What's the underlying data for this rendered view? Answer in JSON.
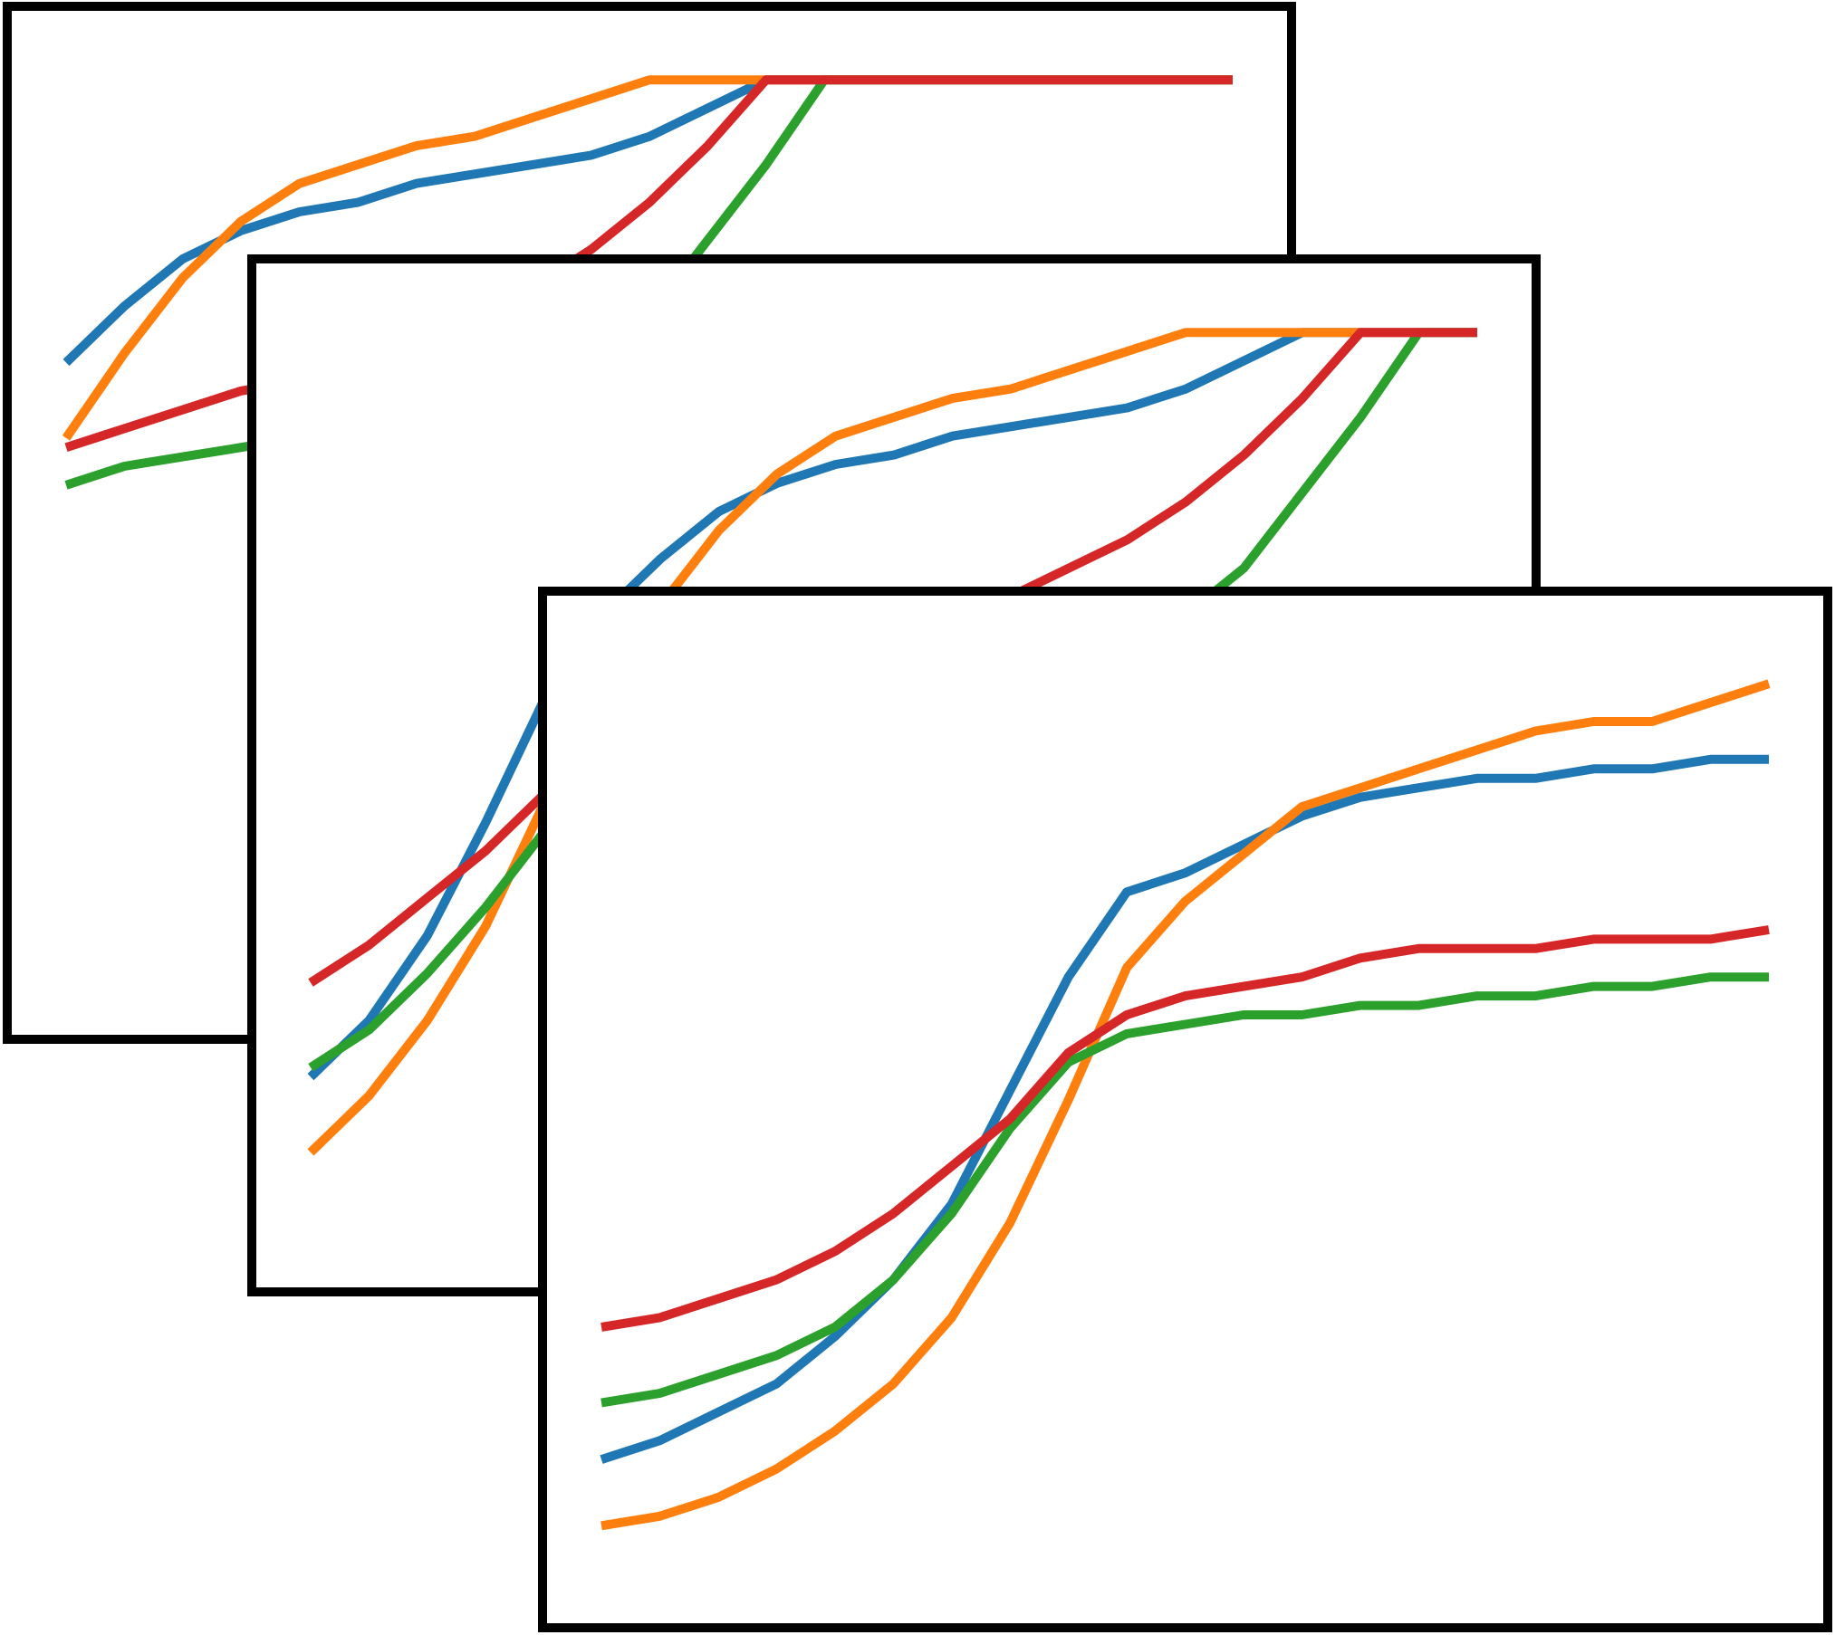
{
  "chart_data": [
    {
      "type": "line",
      "title": "",
      "xlabel": "",
      "ylabel": "",
      "xlim": [
        0,
        1
      ],
      "ylim": [
        0,
        1
      ],
      "grid": false,
      "legend": "none",
      "x": [
        0.0,
        0.05,
        0.1,
        0.15,
        0.2,
        0.25,
        0.3,
        0.35,
        0.4,
        0.45,
        0.5,
        0.55,
        0.6,
        0.65,
        0.7,
        0.75,
        0.8,
        0.85,
        0.9,
        0.95,
        1.0
      ],
      "series": [
        {
          "color": "#1f77b4",
          "values": [
            0.67,
            0.73,
            0.78,
            0.81,
            0.83,
            0.84,
            0.86,
            0.87,
            0.88,
            0.89,
            0.91,
            0.94,
            0.97,
            0.97,
            0.97,
            0.97,
            0.97,
            0.97,
            0.97,
            0.97,
            0.97
          ]
        },
        {
          "color": "#ff7f0e",
          "values": [
            0.59,
            0.68,
            0.76,
            0.82,
            0.86,
            0.88,
            0.9,
            0.91,
            0.93,
            0.95,
            0.97,
            0.97,
            0.97,
            0.97,
            0.97,
            0.97,
            0.97,
            0.97,
            0.97,
            0.97,
            0.97
          ]
        },
        {
          "color": "#2ca02c",
          "values": [
            0.54,
            0.56,
            0.57,
            0.58,
            0.59,
            0.6,
            0.61,
            0.62,
            0.64,
            0.67,
            0.72,
            0.8,
            0.88,
            0.97,
            0.97,
            0.97,
            0.97,
            0.97,
            0.97,
            0.97,
            0.97
          ]
        },
        {
          "color": "#d62728",
          "values": [
            0.58,
            0.6,
            0.62,
            0.64,
            0.65,
            0.67,
            0.69,
            0.72,
            0.75,
            0.79,
            0.84,
            0.9,
            0.97,
            0.97,
            0.97,
            0.97,
            0.97,
            0.97,
            0.97,
            0.97,
            0.97
          ]
        }
      ]
    },
    {
      "type": "line",
      "title": "",
      "xlabel": "",
      "ylabel": "",
      "xlim": [
        0,
        1
      ],
      "ylim": [
        0,
        1
      ],
      "grid": false,
      "legend": "none",
      "x": [
        0.0,
        0.05,
        0.1,
        0.15,
        0.2,
        0.25,
        0.3,
        0.35,
        0.4,
        0.45,
        0.5,
        0.55,
        0.6,
        0.65,
        0.7,
        0.75,
        0.8,
        0.85,
        0.9,
        0.95,
        1.0
      ],
      "series": [
        {
          "color": "#1f77b4",
          "values": [
            0.18,
            0.24,
            0.33,
            0.45,
            0.58,
            0.67,
            0.73,
            0.78,
            0.81,
            0.83,
            0.84,
            0.86,
            0.87,
            0.88,
            0.89,
            0.91,
            0.94,
            0.97,
            0.97,
            0.97,
            0.97
          ]
        },
        {
          "color": "#ff7f0e",
          "values": [
            0.1,
            0.16,
            0.24,
            0.34,
            0.47,
            0.59,
            0.68,
            0.76,
            0.82,
            0.86,
            0.88,
            0.9,
            0.91,
            0.93,
            0.95,
            0.97,
            0.97,
            0.97,
            0.97,
            0.97,
            0.97
          ]
        },
        {
          "color": "#2ca02c",
          "values": [
            0.19,
            0.23,
            0.29,
            0.36,
            0.44,
            0.5,
            0.54,
            0.56,
            0.57,
            0.58,
            0.59,
            0.6,
            0.61,
            0.62,
            0.64,
            0.67,
            0.72,
            0.8,
            0.88,
            0.97,
            0.97
          ]
        },
        {
          "color": "#d62728",
          "values": [
            0.28,
            0.32,
            0.37,
            0.42,
            0.48,
            0.54,
            0.58,
            0.6,
            0.62,
            0.64,
            0.65,
            0.67,
            0.69,
            0.72,
            0.75,
            0.79,
            0.84,
            0.9,
            0.97,
            0.97,
            0.97
          ]
        }
      ]
    },
    {
      "type": "line",
      "title": "",
      "xlabel": "",
      "ylabel": "",
      "xlim": [
        0,
        1
      ],
      "ylim": [
        0,
        1
      ],
      "grid": false,
      "legend": "none",
      "x": [
        0.0,
        0.05,
        0.1,
        0.15,
        0.2,
        0.25,
        0.3,
        0.35,
        0.4,
        0.45,
        0.5,
        0.55,
        0.6,
        0.65,
        0.7,
        0.75,
        0.8,
        0.85,
        0.9,
        0.95,
        1.0
      ],
      "series": [
        {
          "color": "#1f77b4",
          "values": [
            0.13,
            0.15,
            0.18,
            0.21,
            0.26,
            0.32,
            0.4,
            0.52,
            0.64,
            0.73,
            0.75,
            0.78,
            0.81,
            0.83,
            0.84,
            0.85,
            0.85,
            0.86,
            0.86,
            0.87,
            0.87
          ]
        },
        {
          "color": "#ff7f0e",
          "values": [
            0.06,
            0.07,
            0.09,
            0.12,
            0.16,
            0.21,
            0.28,
            0.38,
            0.51,
            0.65,
            0.72,
            0.77,
            0.82,
            0.84,
            0.86,
            0.88,
            0.9,
            0.91,
            0.91,
            0.93,
            0.95
          ]
        },
        {
          "color": "#2ca02c",
          "values": [
            0.19,
            0.2,
            0.22,
            0.24,
            0.27,
            0.32,
            0.39,
            0.48,
            0.55,
            0.58,
            0.59,
            0.6,
            0.6,
            0.61,
            0.61,
            0.62,
            0.62,
            0.63,
            0.63,
            0.64,
            0.64
          ]
        },
        {
          "color": "#d62728",
          "values": [
            0.27,
            0.28,
            0.3,
            0.32,
            0.35,
            0.39,
            0.44,
            0.49,
            0.56,
            0.6,
            0.62,
            0.63,
            0.64,
            0.66,
            0.67,
            0.67,
            0.67,
            0.68,
            0.68,
            0.68,
            0.69
          ]
        }
      ]
    }
  ]
}
